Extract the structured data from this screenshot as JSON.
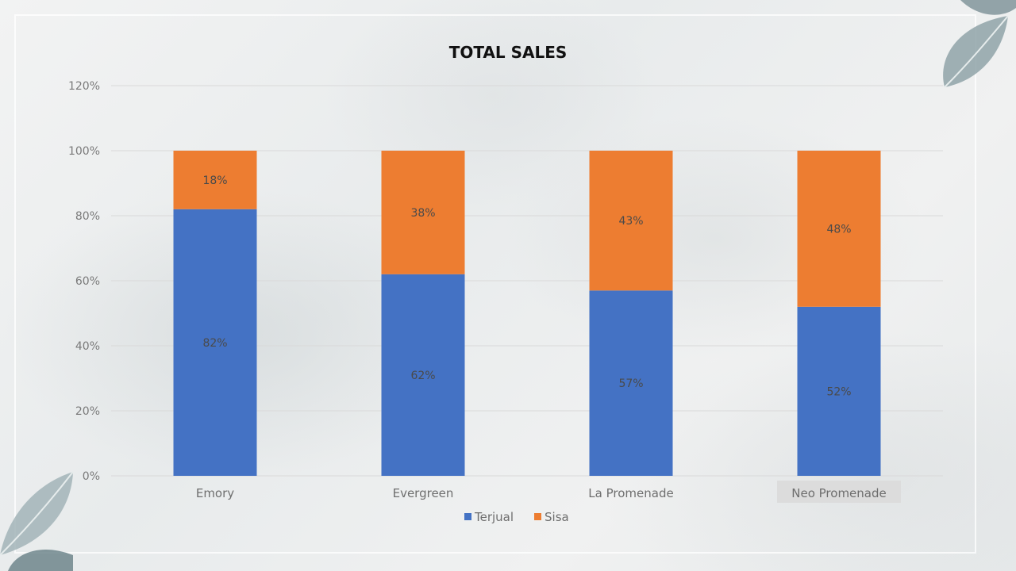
{
  "chart_data": {
    "type": "bar",
    "stacked": true,
    "title": "TOTAL SALES",
    "categories": [
      "Emory",
      "Evergreen",
      "La Promenade",
      "Neo Promenade"
    ],
    "series": [
      {
        "name": "Terjual",
        "values": [
          82,
          62,
          57,
          52
        ],
        "labels": [
          "82%",
          "62%",
          "57%",
          "52%"
        ],
        "color": "#4472c4"
      },
      {
        "name": "Sisa",
        "values": [
          18,
          38,
          43,
          48
        ],
        "labels": [
          "18%",
          "38%",
          "43%",
          "48%"
        ],
        "color": "#ed7d31"
      }
    ],
    "ylim": [
      0,
      120
    ],
    "yticks": [
      0,
      20,
      40,
      60,
      80,
      100,
      120
    ],
    "ytick_labels": [
      "0%",
      "20%",
      "40%",
      "60%",
      "80%",
      "100%",
      "120%"
    ],
    "xlabel": "",
    "ylabel": "",
    "grid": true,
    "legend": "bottom",
    "highlighted_category": "Neo Promenade"
  },
  "colors": {
    "gridline": "#d9d9d9",
    "highlight_box": "#dcdcdc"
  }
}
